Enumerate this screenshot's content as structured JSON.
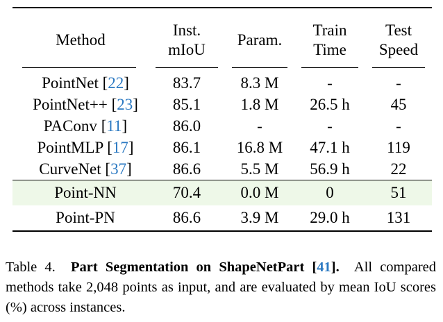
{
  "table": {
    "headers": {
      "method": "Method",
      "inst_1": "Inst.",
      "inst_2": "mIoU",
      "param": "Param.",
      "train_1": "Train",
      "train_2": "Time",
      "test_1": "Test",
      "test_2": "Speed"
    },
    "rows": [
      {
        "name": "PointNet",
        "ref": "22",
        "miou": "83.7",
        "param": "8.3 M",
        "train": "-",
        "test": "-",
        "bold": []
      },
      {
        "name": "PointNet++",
        "ref": "23",
        "miou": "85.1",
        "param": "1.8 M",
        "train": "26.5 h",
        "test": "45",
        "bold": [
          "param",
          "train"
        ]
      },
      {
        "name": "PAConv",
        "ref": "11",
        "miou": "86.0",
        "param": "-",
        "train": "-",
        "test": "-",
        "bold": []
      },
      {
        "name": "PointMLP",
        "ref": "17",
        "miou": "86.1",
        "param": "16.8 M",
        "train": "47.1 h",
        "test": "119",
        "bold": []
      },
      {
        "name": "CurveNet",
        "ref": "37",
        "miou": "86.6",
        "param": "5.5 M",
        "train": "56.9 h",
        "test": "22",
        "bold": [
          "miou"
        ]
      },
      {
        "name": "Point-NN",
        "ref": "",
        "miou": "70.4",
        "param": "0.0 M",
        "train": "0",
        "test": "51",
        "bold": []
      },
      {
        "name": "Point-PN",
        "ref": "",
        "miou": "86.6",
        "param": "3.9 M",
        "train": "29.0 h",
        "test": "131",
        "bold": [
          "miou",
          "test"
        ]
      }
    ]
  },
  "caption": {
    "label": "Table 4.",
    "title_pre": "Part Segmentation on ShapeNetPart [",
    "title_ref": "41",
    "title_post": "].",
    "body": "All compared methods take 2,048 points as input, and are evaluated by mean IoU scores (%) across instances."
  },
  "colors": {
    "ref_link": "#2b79c2",
    "highlight_row": "#eef8e8"
  }
}
